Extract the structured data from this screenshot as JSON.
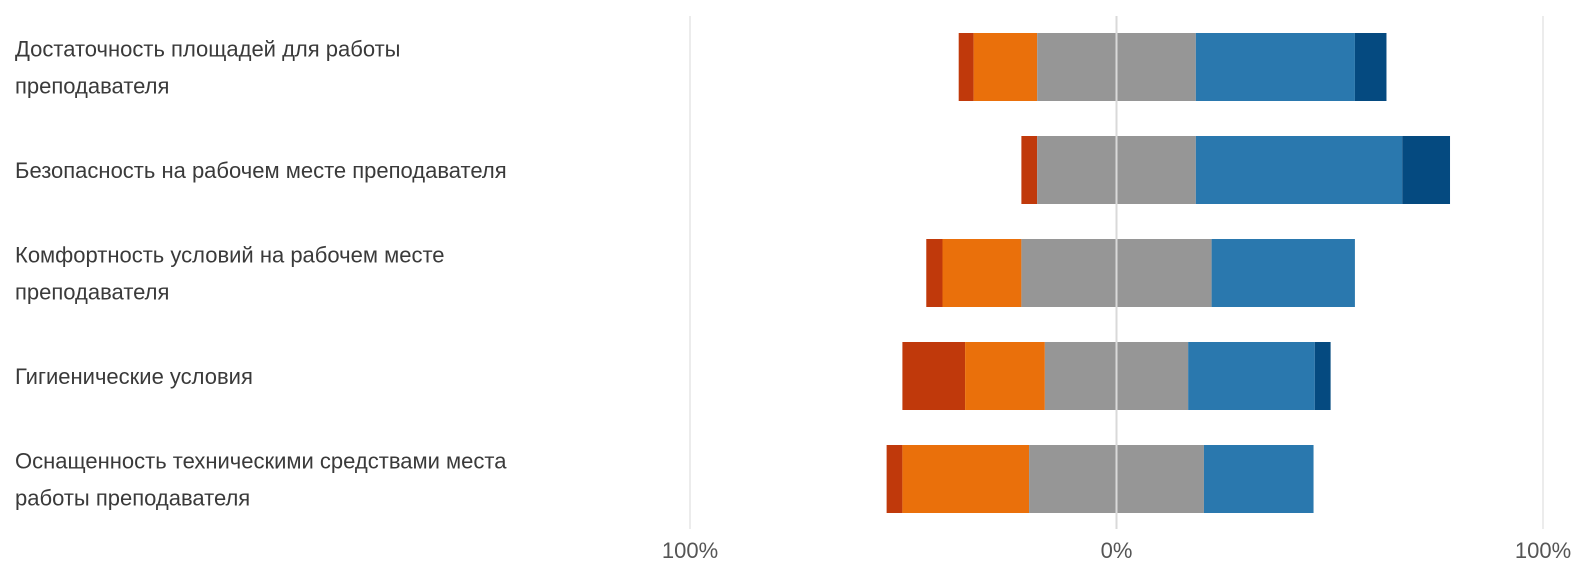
{
  "chart_data": {
    "type": "bar",
    "orientation": "horizontal",
    "stacked": "diverging",
    "categories": [
      [
        "Достаточность площадей для работы",
        "преподавателя"
      ],
      [
        "Безопасность на рабочем месте преподавателя"
      ],
      [
        "Комфортность условий на рабочем месте",
        "преподавателя"
      ],
      [
        "Гигиенические условия"
      ],
      [
        "Оснащенность техническими средствами места",
        "работы преподавателя"
      ]
    ],
    "segments": [
      {
        "color": "#c0390b",
        "values": [
          [
            -37,
            -33.5
          ],
          [
            -22.3,
            -18.6
          ],
          [
            -44.6,
            -40.8
          ],
          [
            -50.2,
            -35.5
          ],
          [
            -53.9,
            -50.2
          ]
        ]
      },
      {
        "color": "#ea700b",
        "values": [
          [
            -33.5,
            -18.6
          ],
          [
            -18.6,
            -18.6
          ],
          [
            -40.8,
            -22.3
          ],
          [
            -35.5,
            -16.8
          ],
          [
            -50.2,
            -20.5
          ]
        ]
      },
      {
        "color": "#969696",
        "values": [
          [
            -18.6,
            18.6
          ],
          [
            -18.6,
            18.6
          ],
          [
            -22.3,
            22.3
          ],
          [
            -16.8,
            16.8
          ],
          [
            -20.5,
            20.5
          ]
        ]
      },
      {
        "color": "#2a78ae",
        "values": [
          [
            18.6,
            55.9
          ],
          [
            18.6,
            67
          ],
          [
            22.3,
            55.9
          ],
          [
            16.8,
            46.5
          ],
          [
            20.5,
            46.2
          ]
        ]
      },
      {
        "color": "#054a80",
        "values": [
          [
            55.9,
            63.3
          ],
          [
            67,
            78.2
          ],
          [
            55.9,
            55.9
          ],
          [
            46.5,
            50.2
          ],
          [
            46.2,
            46.2
          ]
        ]
      }
    ],
    "xlim": [
      -100,
      100
    ],
    "xticks": [
      {
        "value": -100,
        "label": "100%"
      },
      {
        "value": 0,
        "label": "0%"
      },
      {
        "value": 100,
        "label": "100%"
      }
    ],
    "grid": true,
    "legend": "none"
  }
}
